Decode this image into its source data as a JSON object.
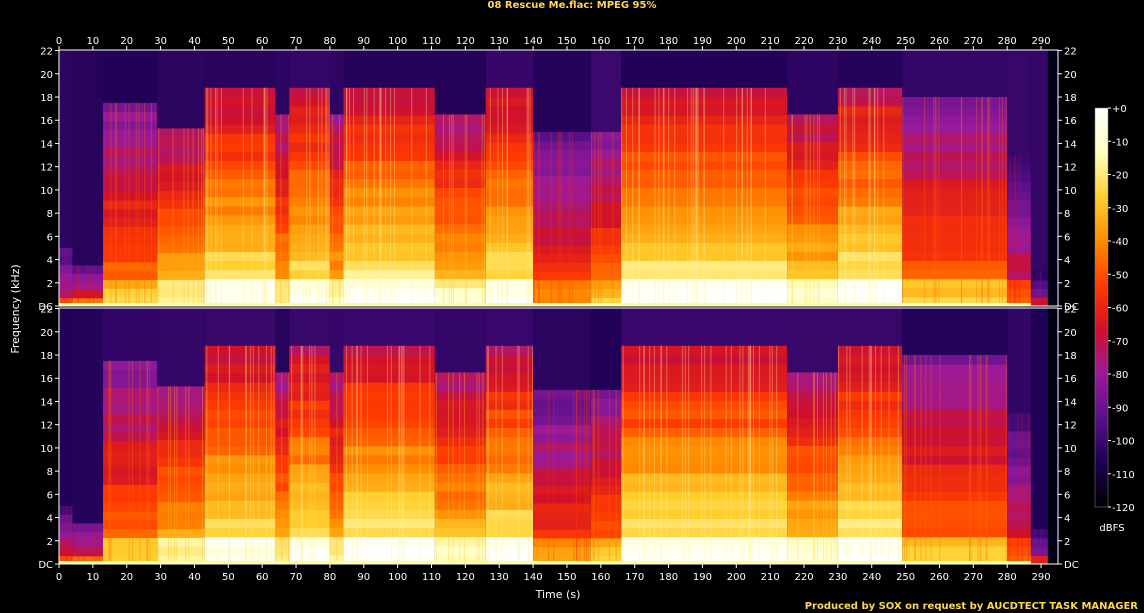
{
  "title": "08 Rescue Me.flac: MPEG 95%",
  "footer": "Produced by SOX on request by AUCDTECT TASK MANAGER",
  "chart_data": {
    "type": "heatmap",
    "xlabel": "Time (s)",
    "ylabel": "Frequency (kHz)",
    "xlim": [
      0,
      295
    ],
    "ylim": [
      0,
      22.05
    ],
    "x_ticks": [
      "0",
      "10",
      "20",
      "30",
      "40",
      "50",
      "60",
      "70",
      "80",
      "90",
      "100",
      "110",
      "120",
      "130",
      "140",
      "150",
      "160",
      "170",
      "180",
      "190",
      "200",
      "210",
      "220",
      "230",
      "240",
      "250",
      "260",
      "270",
      "280",
      "290"
    ],
    "y_ticks": [
      "DC",
      "2",
      "4",
      "6",
      "8",
      "10",
      "12",
      "14",
      "16",
      "18",
      "20",
      "22"
    ],
    "channels": 2,
    "colorbar": {
      "label": "dBFS",
      "range": [
        -120,
        0
      ],
      "ticks": [
        "+0",
        "-10",
        "-20",
        "-30",
        "-40",
        "-50",
        "-60",
        "-70",
        "-80",
        "-90",
        "-100",
        "-110",
        "-120"
      ],
      "colors": [
        "#000000",
        "#1a0050",
        "#5a108a",
        "#9a1a9a",
        "#d0102a",
        "#ff3a00",
        "#ff8c00",
        "#ffd030",
        "#ffffc0",
        "#ffffff"
      ]
    },
    "segments": [
      {
        "start": 0,
        "end": 4,
        "cutoff_khz": 5,
        "level": 0.3
      },
      {
        "start": 4,
        "end": 13,
        "cutoff_khz": 3.5,
        "level": 0.35
      },
      {
        "start": 13,
        "end": 29,
        "cutoff_khz": 17.5,
        "level": 0.5
      },
      {
        "start": 29,
        "end": 43,
        "cutoff_khz": 15.3,
        "level": 0.62
      },
      {
        "start": 43,
        "end": 64,
        "cutoff_khz": 18.8,
        "level": 0.72
      },
      {
        "start": 64,
        "end": 68,
        "cutoff_khz": 16.5,
        "level": 0.6
      },
      {
        "start": 68,
        "end": 80,
        "cutoff_khz": 18.8,
        "level": 0.72
      },
      {
        "start": 80,
        "end": 84,
        "cutoff_khz": 16.5,
        "level": 0.6
      },
      {
        "start": 84,
        "end": 111,
        "cutoff_khz": 18.8,
        "level": 0.74
      },
      {
        "start": 111,
        "end": 126,
        "cutoff_khz": 16.5,
        "level": 0.64
      },
      {
        "start": 126,
        "end": 140,
        "cutoff_khz": 18.8,
        "level": 0.72
      },
      {
        "start": 140,
        "end": 157,
        "cutoff_khz": 15,
        "level": 0.42
      },
      {
        "start": 157,
        "end": 166,
        "cutoff_khz": 15,
        "level": 0.5
      },
      {
        "start": 166,
        "end": 215,
        "cutoff_khz": 18.8,
        "level": 0.74
      },
      {
        "start": 215,
        "end": 230,
        "cutoff_khz": 16.5,
        "level": 0.66
      },
      {
        "start": 230,
        "end": 249,
        "cutoff_khz": 18.8,
        "level": 0.74
      },
      {
        "start": 249,
        "end": 280,
        "cutoff_khz": 18,
        "level": 0.5
      },
      {
        "start": 280,
        "end": 287,
        "cutoff_khz": 13,
        "level": 0.32
      },
      {
        "start": 287,
        "end": 292,
        "cutoff_khz": 3,
        "level": 0.2
      }
    ]
  }
}
